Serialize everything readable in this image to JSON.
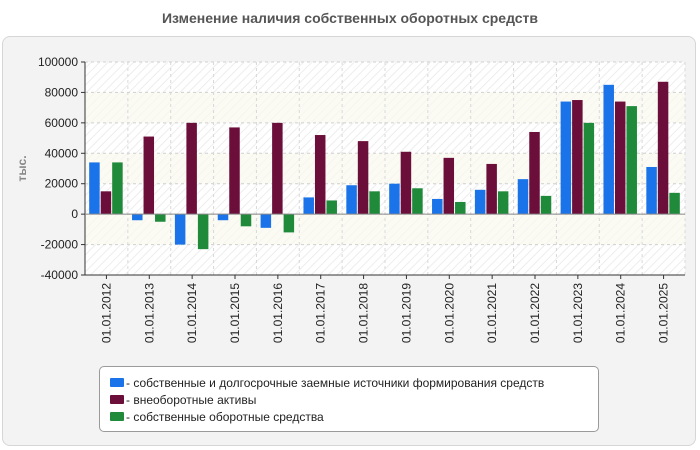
{
  "chart_data": {
    "type": "bar",
    "title": "Изменение наличия собственных оборотных средств",
    "ylabel": "тыс.",
    "xlabel": "",
    "ylim": [
      -40000,
      100000
    ],
    "yticks": [
      100000,
      80000,
      60000,
      40000,
      20000,
      0,
      -20000,
      -40000
    ],
    "categories": [
      "01.01.2012",
      "01.01.2013",
      "01.01.2014",
      "01.01.2015",
      "01.01.2016",
      "01.01.2017",
      "01.01.2018",
      "01.01.2019",
      "01.01.2020",
      "01.01.2021",
      "01.01.2022",
      "01.01.2023",
      "01.01.2024",
      "01.01.2025"
    ],
    "series": [
      {
        "name": "собственные и долгосрочные заемные источники формирования средств",
        "color": "#1a73e8",
        "values": [
          34000,
          -4000,
          -20000,
          -4000,
          -9000,
          11000,
          19000,
          20000,
          10000,
          16000,
          23000,
          74000,
          85000,
          31000
        ]
      },
      {
        "name": "внеоборотные активы",
        "color": "#6b0f3a",
        "values": [
          15000,
          51000,
          60000,
          57000,
          60000,
          52000,
          48000,
          41000,
          37000,
          33000,
          54000,
          75000,
          74000,
          87000
        ]
      },
      {
        "name": "собственные оборотные средства",
        "color": "#1f8a3a",
        "values": [
          34000,
          -5000,
          -23000,
          -8000,
          -12000,
          9000,
          15000,
          17000,
          8000,
          15000,
          12000,
          60000,
          71000,
          14000
        ]
      }
    ],
    "legend_position": "bottom",
    "grid": true
  }
}
